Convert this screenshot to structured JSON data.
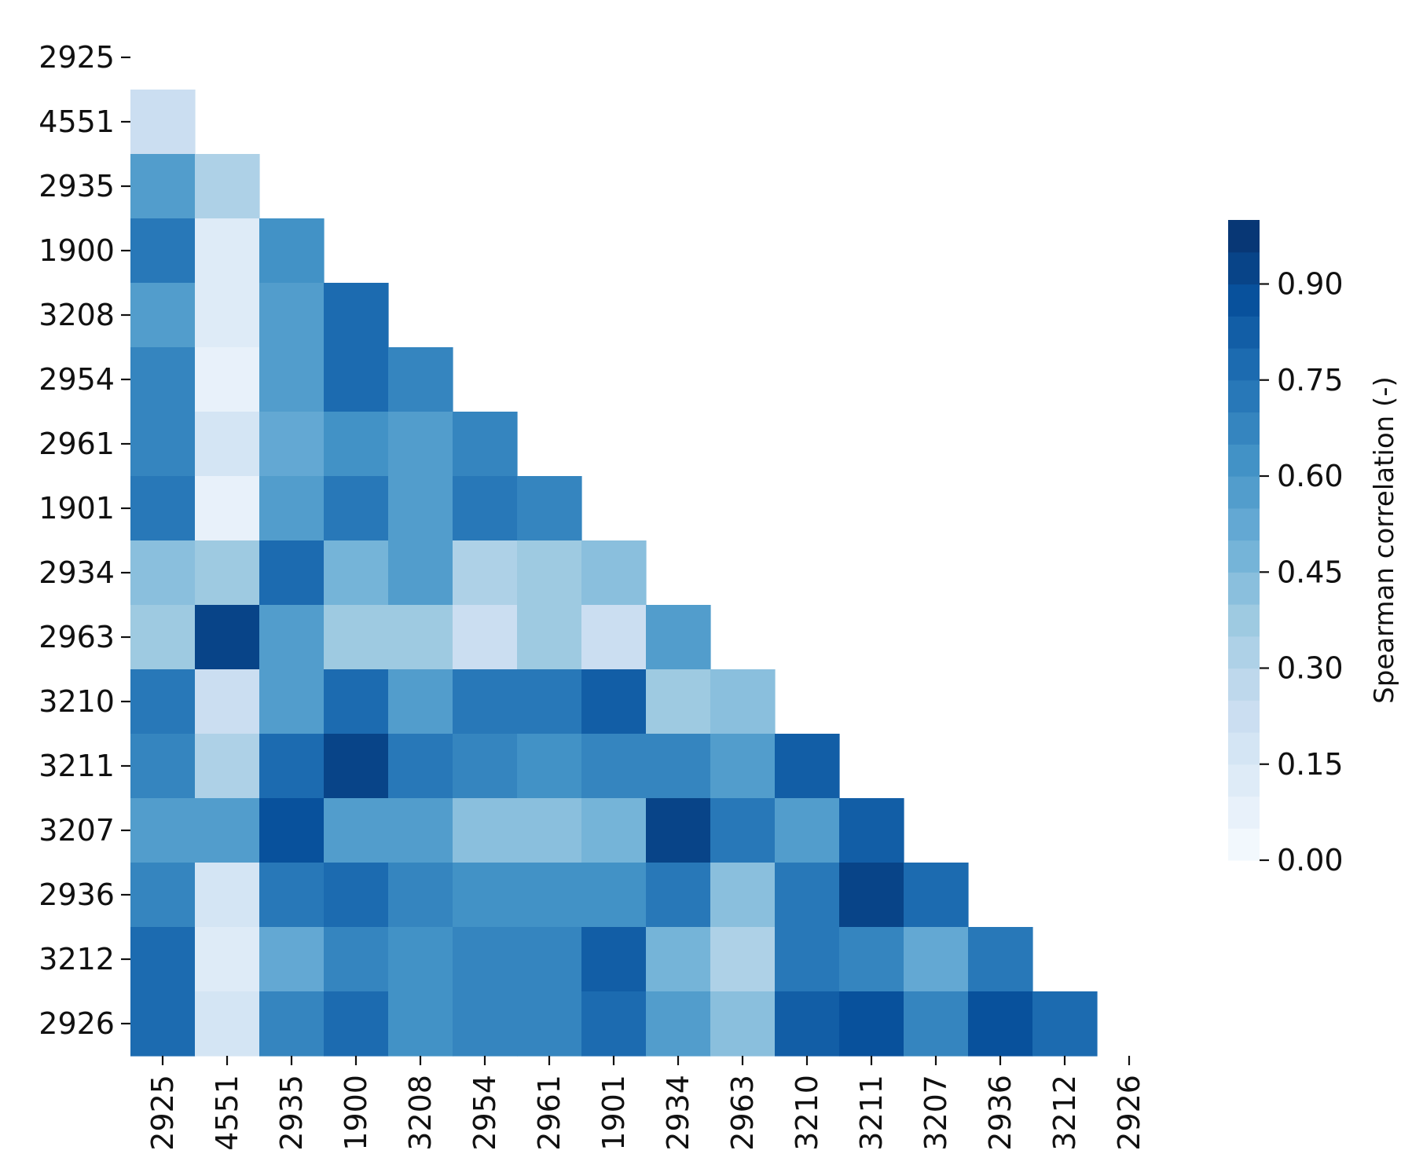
{
  "chart_data": {
    "type": "heatmap",
    "title": "",
    "xlabel": "",
    "ylabel": "",
    "mask": "lower-triangle",
    "labels": [
      "2925",
      "4551",
      "2935",
      "1900",
      "3208",
      "2954",
      "2961",
      "1901",
      "2934",
      "2963",
      "3210",
      "3211",
      "3207",
      "2936",
      "3212",
      "2926"
    ],
    "values": [
      [
        null,
        null,
        null,
        null,
        null,
        null,
        null,
        null,
        null,
        null,
        null,
        null,
        null,
        null,
        null,
        null
      ],
      [
        0.22,
        null,
        null,
        null,
        null,
        null,
        null,
        null,
        null,
        null,
        null,
        null,
        null,
        null,
        null,
        null
      ],
      [
        0.55,
        0.33,
        null,
        null,
        null,
        null,
        null,
        null,
        null,
        null,
        null,
        null,
        null,
        null,
        null,
        null
      ],
      [
        0.72,
        0.12,
        0.62,
        null,
        null,
        null,
        null,
        null,
        null,
        null,
        null,
        null,
        null,
        null,
        null,
        null
      ],
      [
        0.57,
        0.12,
        0.55,
        0.78,
        null,
        null,
        null,
        null,
        null,
        null,
        null,
        null,
        null,
        null,
        null,
        null
      ],
      [
        0.68,
        0.08,
        0.55,
        0.78,
        0.68,
        null,
        null,
        null,
        null,
        null,
        null,
        null,
        null,
        null,
        null,
        null
      ],
      [
        0.68,
        0.18,
        0.5,
        0.62,
        0.58,
        0.66,
        null,
        null,
        null,
        null,
        null,
        null,
        null,
        null,
        null,
        null
      ],
      [
        0.73,
        0.06,
        0.56,
        0.72,
        0.58,
        0.72,
        0.66,
        null,
        null,
        null,
        null,
        null,
        null,
        null,
        null,
        null
      ],
      [
        0.4,
        0.37,
        0.78,
        0.49,
        0.58,
        0.3,
        0.36,
        0.42,
        null,
        null,
        null,
        null,
        null,
        null,
        null,
        null
      ],
      [
        0.37,
        0.91,
        0.56,
        0.36,
        0.36,
        0.24,
        0.36,
        0.22,
        0.58,
        null,
        null,
        null,
        null,
        null,
        null,
        null
      ],
      [
        0.72,
        0.21,
        0.56,
        0.78,
        0.58,
        0.72,
        0.72,
        0.82,
        0.37,
        0.41,
        null,
        null,
        null,
        null,
        null,
        null
      ],
      [
        0.67,
        0.33,
        0.78,
        0.91,
        0.72,
        0.66,
        0.62,
        0.66,
        0.66,
        0.58,
        0.84,
        null,
        null,
        null,
        null,
        null
      ],
      [
        0.55,
        0.55,
        0.89,
        0.58,
        0.58,
        0.42,
        0.42,
        0.46,
        0.91,
        0.7,
        0.55,
        0.82,
        null,
        null,
        null,
        null
      ],
      [
        0.67,
        0.18,
        0.72,
        0.76,
        0.68,
        0.62,
        0.62,
        0.62,
        0.72,
        0.44,
        0.72,
        0.91,
        0.78,
        null,
        null,
        null
      ],
      [
        0.78,
        0.12,
        0.53,
        0.67,
        0.62,
        0.66,
        0.66,
        0.82,
        0.48,
        0.31,
        0.72,
        0.66,
        0.53,
        0.7,
        null,
        null
      ],
      [
        0.78,
        0.16,
        0.66,
        0.78,
        0.62,
        0.66,
        0.66,
        0.76,
        0.55,
        0.41,
        0.84,
        0.89,
        0.66,
        0.89,
        0.76,
        null
      ]
    ],
    "colorbar": {
      "label": "Spearman correlation (-)",
      "ticks": [
        "0.00",
        "0.15",
        "0.30",
        "0.45",
        "0.60",
        "0.75",
        "0.90"
      ],
      "tick_values": [
        0.0,
        0.15,
        0.3,
        0.45,
        0.6,
        0.75,
        0.9
      ],
      "vmin": 0.0,
      "vmax": 1.0,
      "levels": 20,
      "colormap": "Blues"
    }
  }
}
